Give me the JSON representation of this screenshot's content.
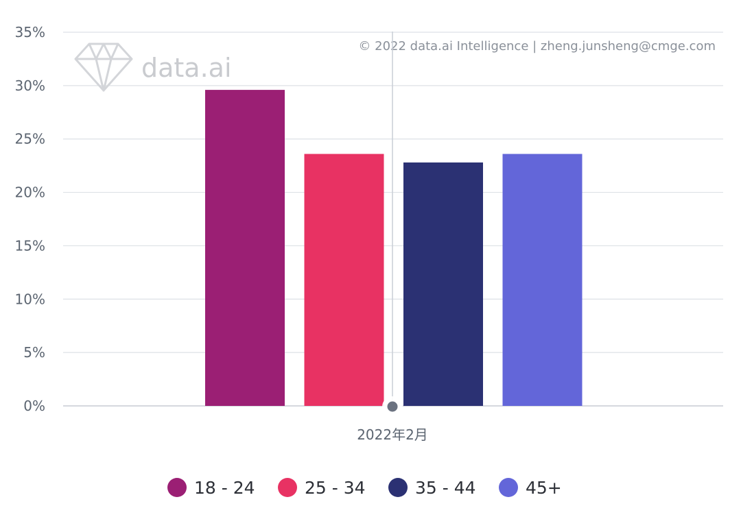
{
  "watermark": {
    "logo_text": "data.ai",
    "copyright": "© 2022 data.ai Intelligence | zheng.junsheng@cmge.com"
  },
  "chart_data": {
    "type": "bar",
    "categories": [
      "2022年2月"
    ],
    "series": [
      {
        "name": "18 - 24",
        "values": [
          29.6
        ],
        "color": "#9b1f74"
      },
      {
        "name": "25 - 34",
        "values": [
          23.6
        ],
        "color": "#e83263"
      },
      {
        "name": "35 - 44",
        "values": [
          22.8
        ],
        "color": "#2b3173"
      },
      {
        "name": "45+",
        "values": [
          23.6
        ],
        "color": "#6366d9"
      }
    ],
    "ylim": [
      0,
      35
    ],
    "yticks": [
      "0%",
      "5%",
      "10%",
      "15%",
      "20%",
      "25%",
      "30%",
      "35%"
    ],
    "ytick_values": [
      0,
      5,
      10,
      15,
      20,
      25,
      30,
      35
    ],
    "grid": true,
    "legend_position": "bottom"
  }
}
